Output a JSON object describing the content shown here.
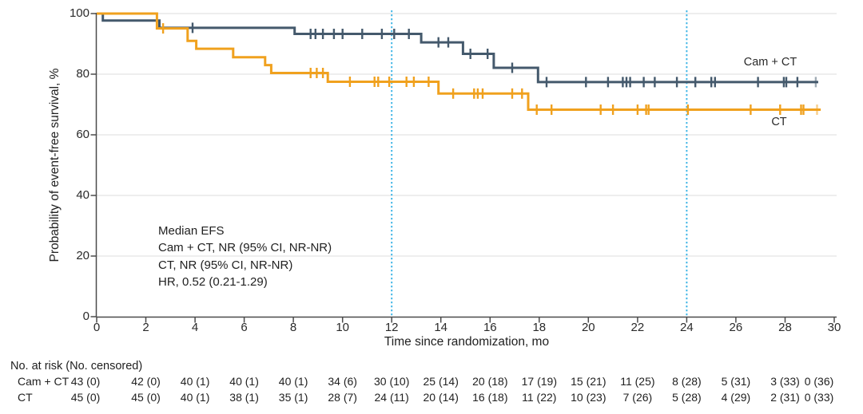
{
  "chart_data": {
    "type": "line",
    "subtype": "kaplan-meier-step",
    "title": "",
    "xlabel": "Time since randomization, mo",
    "ylabel": "Probability of event-free survival, %",
    "xlim": [
      0,
      30
    ],
    "ylim": [
      0,
      100
    ],
    "x_tick_labels": [
      "0",
      "2",
      "4",
      "6",
      "8",
      "10",
      "12",
      "14",
      "16",
      "18",
      "20",
      "22",
      "24",
      "26",
      "28",
      "30"
    ],
    "x_tick_values": [
      0,
      2,
      4,
      6,
      8,
      10,
      12,
      14,
      16,
      18,
      20,
      22,
      24,
      26,
      28,
      30
    ],
    "y_tick_labels": [
      "0",
      "20",
      "40",
      "60",
      "80",
      "100"
    ],
    "y_tick_values": [
      0,
      20,
      40,
      60,
      80,
      100
    ],
    "grid": "horizontal",
    "reference_lines_x": [
      12,
      24
    ],
    "reference_line_color": "#3CB4E5",
    "gridline_color": "#E9E9E9",
    "axis_color": "#4A4A4A",
    "annotation_lines": [
      "Median EFS",
      "Cam + CT, NR (95% CI, NR-NR)",
      "CT, NR (95% CI, NR-NR)",
      "HR, 0.52 (0.21-1.29)"
    ],
    "series": [
      {
        "name": "Cam + CT",
        "label": "Cam + CT",
        "color": "#44596C",
        "steps": [
          [
            0,
            100
          ],
          [
            0.25,
            97.7
          ],
          [
            2.55,
            95.3
          ],
          [
            8.05,
            93.3
          ],
          [
            13.2,
            90.5
          ],
          [
            14.9,
            86.7
          ],
          [
            16.15,
            82.1
          ],
          [
            17.95,
            77.4
          ]
        ],
        "end_x": 29.35,
        "censor_times": [
          3.9,
          8.7,
          8.9,
          9.2,
          9.65,
          10.0,
          10.8,
          11.6,
          12.1,
          12.7,
          13.9,
          14.3,
          15.2,
          15.9,
          16.9,
          18.3,
          19.9,
          20.8,
          21.4,
          21.55,
          21.7,
          22.25,
          22.7,
          23.6,
          24.35,
          25.0,
          25.15,
          26.9,
          27.95,
          28.05,
          28.5,
          29.25
        ]
      },
      {
        "name": "CT",
        "label": "CT",
        "color": "#F0A11E",
        "steps": [
          [
            0,
            100
          ],
          [
            2.45,
            95.1
          ],
          [
            3.7,
            91.0
          ],
          [
            4.05,
            88.4
          ],
          [
            5.55,
            85.6
          ],
          [
            6.85,
            83.0
          ],
          [
            7.1,
            80.4
          ],
          [
            9.4,
            77.5
          ],
          [
            13.9,
            73.6
          ],
          [
            17.55,
            68.3
          ]
        ],
        "end_x": 29.45,
        "censor_times": [
          2.7,
          8.7,
          8.95,
          9.2,
          10.3,
          11.3,
          11.45,
          11.9,
          12.6,
          12.9,
          13.5,
          14.5,
          15.35,
          15.5,
          15.7,
          16.9,
          17.3,
          17.9,
          18.5,
          20.5,
          21.0,
          22.0,
          22.35,
          22.45,
          24.05,
          26.6,
          27.8,
          28.65,
          28.75,
          29.3
        ]
      }
    ]
  },
  "risk_table": {
    "title": "No. at risk (No. censored)",
    "time_points": [
      0,
      2,
      4,
      6,
      8,
      10,
      12,
      14,
      16,
      18,
      20,
      22,
      24,
      26,
      28,
      30
    ],
    "rows": [
      {
        "label": "Cam + CT",
        "values": [
          "43 (0)",
          "42 (0)",
          "40 (1)",
          "40 (1)",
          "40 (1)",
          "34 (6)",
          "30 (10)",
          "25 (14)",
          "20 (18)",
          "17 (19)",
          "15 (21)",
          "11 (25)",
          "8 (28)",
          "5 (31)",
          "3 (33)",
          "0 (36)"
        ]
      },
      {
        "label": "CT",
        "values": [
          "45 (0)",
          "45 (0)",
          "40 (1)",
          "38 (1)",
          "35 (1)",
          "28 (7)",
          "24 (11)",
          "20 (14)",
          "16 (18)",
          "11 (22)",
          "10 (23)",
          "7 (26)",
          "5 (28)",
          "4 (29)",
          "2 (31)",
          "0 (33)"
        ]
      }
    ]
  }
}
